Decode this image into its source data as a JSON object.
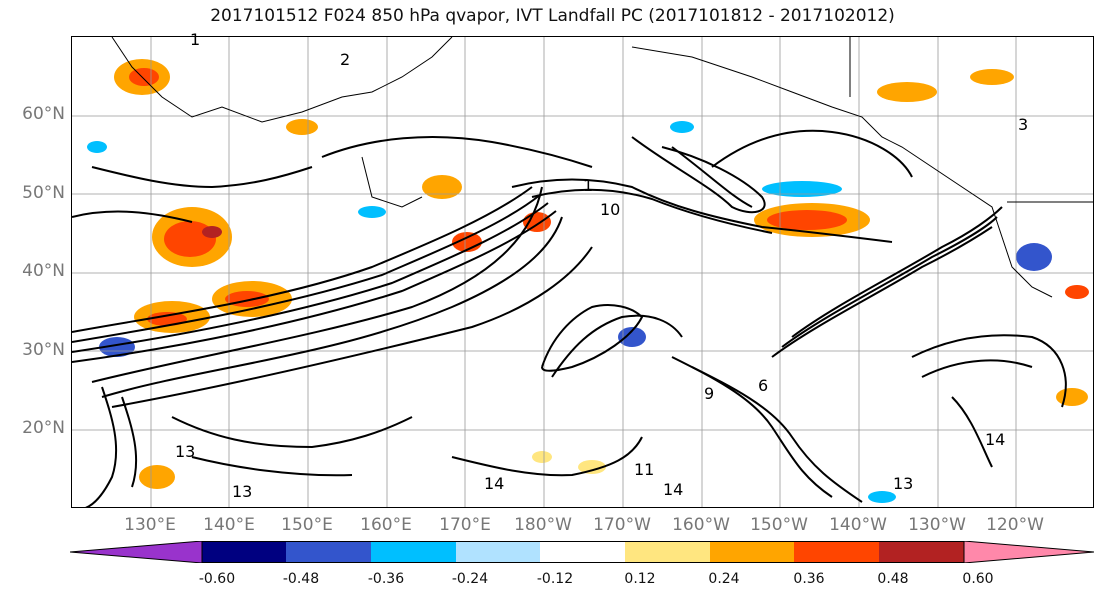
{
  "title": "2017101512 F024 850 hPa qvapor, IVT Landfall PC (2017101812 - 2017102012)",
  "lat_labels": [
    "60°N",
    "50°N",
    "40°N",
    "30°N",
    "20°N"
  ],
  "lon_labels": [
    "130°E",
    "140°E",
    "150°E",
    "160°E",
    "170°E",
    "180°W",
    "170°W",
    "160°W",
    "150°W",
    "140°W",
    "130°W",
    "120°W"
  ],
  "map": {
    "lon_range": [
      120,
      250
    ],
    "lat_range": [
      10,
      70
    ],
    "gridlines": true,
    "contour_labels": [
      "1",
      "2",
      "10",
      "13",
      "13",
      "14",
      "14",
      "11",
      "3",
      "6",
      "9",
      "13",
      "14"
    ]
  },
  "colorbar": {
    "colors": [
      "#9933cc",
      "#000080",
      "#3355cc",
      "#00bfff",
      "#b0e2ff",
      "#ffffff",
      "#ffe680",
      "#ffa500",
      "#ff4500",
      "#b22222",
      "#ff88aa"
    ],
    "ticks": [
      "-0.60",
      "-0.48",
      "-0.36",
      "-0.24",
      "-0.12",
      "0.12",
      "0.24",
      "0.36",
      "0.48",
      "0.60"
    ],
    "extend": "both"
  }
}
